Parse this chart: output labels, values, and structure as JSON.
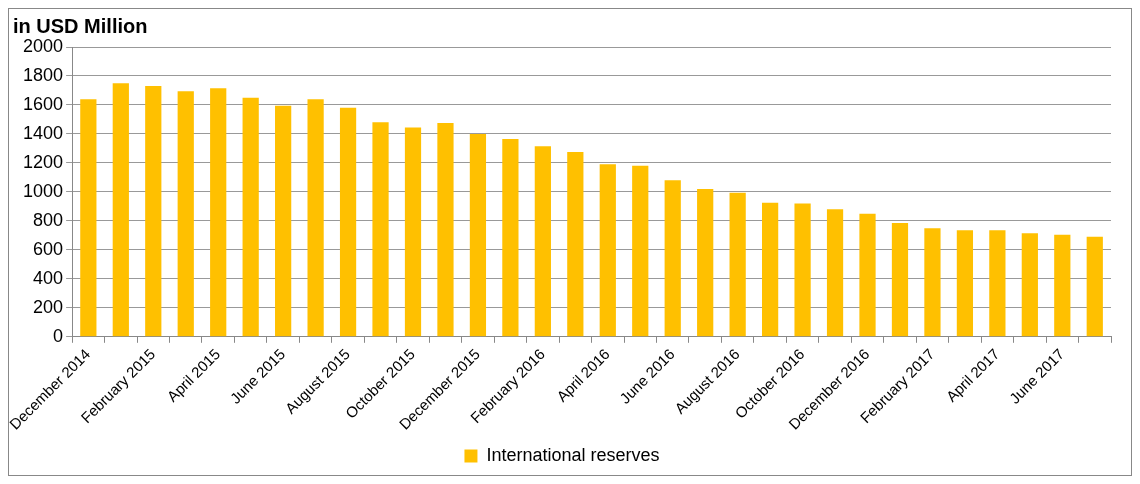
{
  "chart_data": {
    "type": "bar",
    "title": "in USD Million",
    "categories": [
      "December 2014",
      null,
      "February 2015",
      null,
      "April 2015",
      null,
      "June 2015",
      null,
      "August 2015",
      null,
      "October 2015",
      null,
      "December 2015",
      null,
      "February 2016",
      null,
      "April 2016",
      null,
      "June 2016",
      null,
      "August 2016",
      null,
      "October 2016",
      null,
      "December 2016",
      null,
      "February 2017",
      null,
      "April 2017",
      null,
      "June 2017",
      null
    ],
    "series": [
      {
        "name": "International reserves",
        "color": "#ffc000",
        "values": [
          1640,
          1750,
          1730,
          1695,
          1715,
          1650,
          1595,
          1640,
          1580,
          1480,
          1445,
          1475,
          1400,
          1365,
          1315,
          1275,
          1190,
          1180,
          1080,
          1020,
          995,
          925,
          920,
          880,
          850,
          785,
          750,
          735,
          735,
          715,
          705,
          690
        ]
      }
    ],
    "ylim": [
      0,
      2000
    ],
    "yticks": [
      0,
      200,
      400,
      600,
      800,
      1000,
      1200,
      1400,
      1600,
      1800,
      2000
    ],
    "grid": "y",
    "legend": "bottom"
  }
}
